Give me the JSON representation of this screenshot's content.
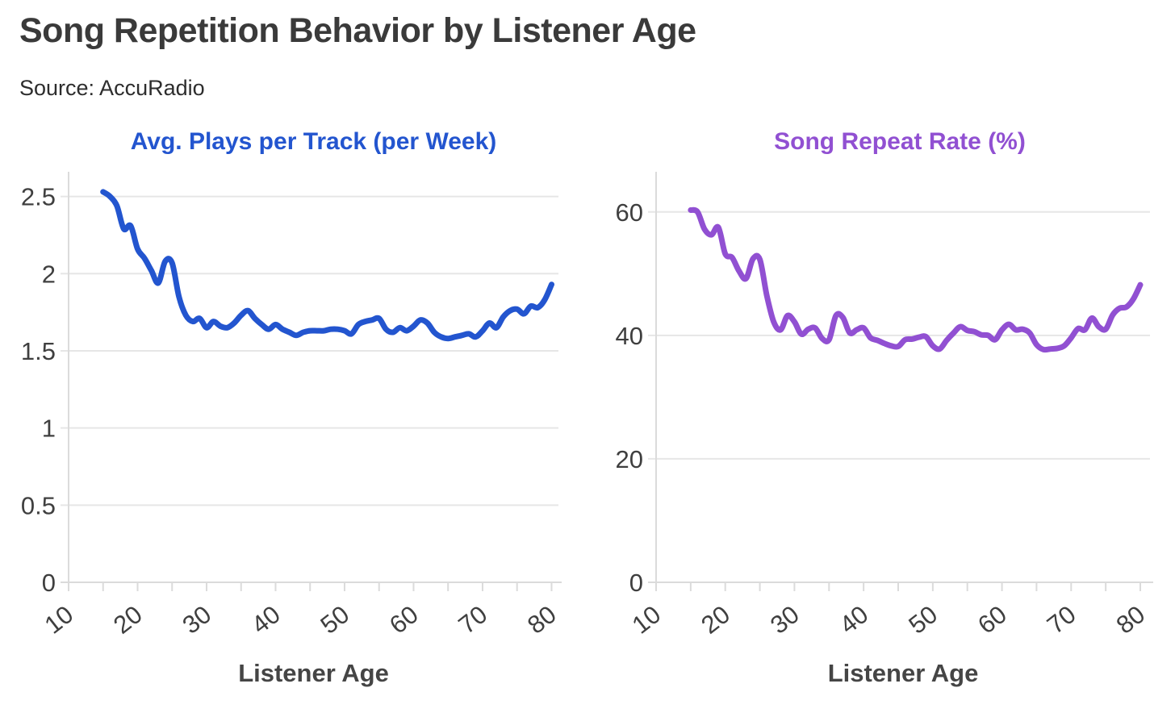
{
  "header": {
    "title": "Song Repetition Behavior by Listener Age",
    "source": "Source: AccuRadio"
  },
  "chart_data": [
    {
      "type": "line",
      "title": "Avg. Plays per Track (per Week)",
      "color": "#2355cf",
      "xlabel": "Listener Age",
      "x": [
        15,
        16,
        17,
        18,
        19,
        20,
        21,
        22,
        23,
        24,
        25,
        26,
        27,
        28,
        29,
        30,
        31,
        32,
        33,
        34,
        35,
        36,
        37,
        38,
        39,
        40,
        41,
        42,
        43,
        44,
        45,
        46,
        47,
        48,
        49,
        50,
        51,
        52,
        53,
        54,
        55,
        56,
        57,
        58,
        59,
        60,
        61,
        62,
        63,
        64,
        65,
        66,
        67,
        68,
        69,
        70,
        71,
        72,
        73,
        74,
        75,
        76,
        77,
        78,
        79,
        80
      ],
      "values": [
        2.53,
        2.5,
        2.44,
        2.29,
        2.31,
        2.16,
        2.1,
        2.02,
        1.94,
        2.08,
        2.07,
        1.85,
        1.73,
        1.69,
        1.71,
        1.65,
        1.69,
        1.66,
        1.65,
        1.68,
        1.73,
        1.76,
        1.71,
        1.67,
        1.64,
        1.67,
        1.64,
        1.62,
        1.6,
        1.62,
        1.63,
        1.63,
        1.63,
        1.64,
        1.64,
        1.63,
        1.61,
        1.67,
        1.69,
        1.7,
        1.71,
        1.64,
        1.62,
        1.65,
        1.63,
        1.66,
        1.7,
        1.68,
        1.62,
        1.59,
        1.58,
        1.59,
        1.6,
        1.61,
        1.59,
        1.63,
        1.68,
        1.65,
        1.72,
        1.76,
        1.77,
        1.74,
        1.79,
        1.78,
        1.83,
        1.93
      ],
      "xlim": [
        10,
        81
      ],
      "ylim": [
        0,
        2.66
      ],
      "yticks": [
        0,
        0.5,
        1,
        1.5,
        2,
        2.5
      ],
      "ytick_labels": [
        "0",
        "0.5",
        "1",
        "1.5",
        "2",
        "2.5"
      ],
      "xticks": [
        10,
        20,
        30,
        40,
        50,
        60,
        70,
        80
      ],
      "xminor_step": 5,
      "grid": true,
      "legend": "none"
    },
    {
      "type": "line",
      "title": "Song Repeat Rate (%)",
      "color": "#9150d2",
      "xlabel": "Listener Age",
      "x": [
        15,
        16,
        17,
        18,
        19,
        20,
        21,
        22,
        23,
        24,
        25,
        26,
        27,
        28,
        29,
        30,
        31,
        32,
        33,
        34,
        35,
        36,
        37,
        38,
        39,
        40,
        41,
        42,
        43,
        44,
        45,
        46,
        47,
        48,
        49,
        50,
        51,
        52,
        53,
        54,
        55,
        56,
        57,
        58,
        59,
        60,
        61,
        62,
        63,
        64,
        65,
        66,
        67,
        68,
        69,
        70,
        71,
        72,
        73,
        74,
        75,
        76,
        77,
        78,
        79,
        80
      ],
      "values": [
        60.3,
        60.0,
        57.2,
        56.3,
        57.5,
        53.2,
        52.6,
        50.4,
        49.2,
        52.4,
        52.3,
        46.5,
        42.2,
        40.9,
        43.2,
        42.2,
        40.2,
        41.0,
        41.2,
        39.5,
        39.3,
        43.2,
        42.9,
        40.4,
        40.9,
        41.2,
        39.6,
        39.2,
        38.7,
        38.3,
        38.2,
        39.3,
        39.4,
        39.7,
        39.8,
        38.3,
        37.8,
        39.2,
        40.4,
        41.4,
        40.8,
        40.6,
        40.1,
        40.0,
        39.3,
        40.9,
        41.8,
        40.9,
        41.0,
        40.4,
        38.5,
        37.7,
        37.8,
        37.9,
        38.3,
        39.6,
        41.1,
        40.9,
        42.8,
        41.4,
        41.0,
        43.3,
        44.4,
        44.6,
        45.9,
        48.2
      ],
      "xlim": [
        10,
        81.4
      ],
      "ylim": [
        0,
        66.5
      ],
      "yticks": [
        0,
        20,
        40,
        60
      ],
      "ytick_labels": [
        "0",
        "20",
        "40",
        "60"
      ],
      "xticks": [
        10,
        20,
        30,
        40,
        50,
        60,
        70,
        80
      ],
      "xminor_step": 5,
      "grid": true,
      "legend": "none"
    }
  ],
  "style": {
    "grid_color": "#e6e6e6",
    "axis_color": "#dbdbdb",
    "tick_text_color": "#3f3f3f",
    "axis_title_color": "#454545",
    "title_color": "#3a3a3a",
    "source_color": "#2d2d2d",
    "background": "#ffffff"
  }
}
